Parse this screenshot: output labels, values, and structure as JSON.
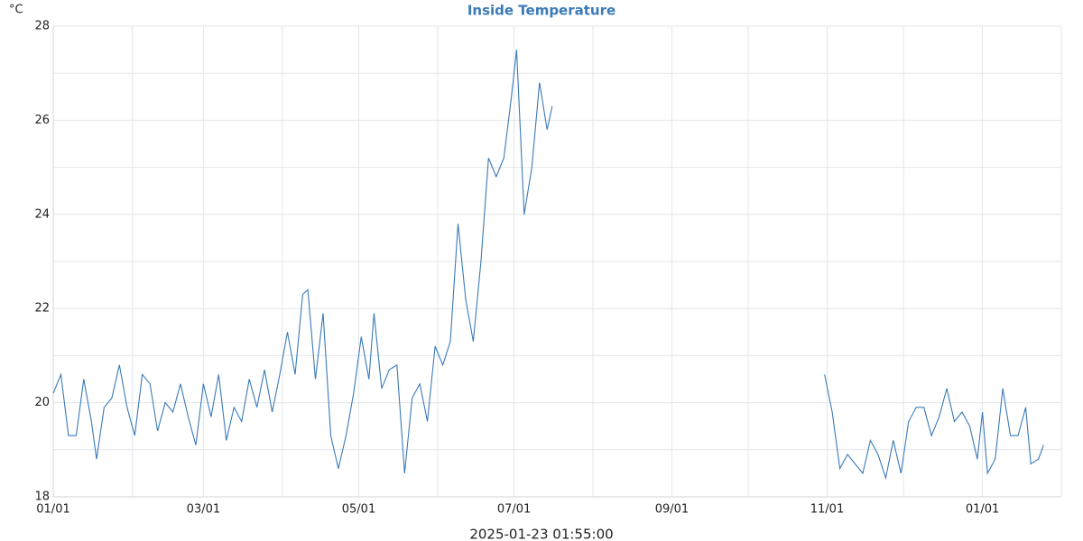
{
  "chart_data": {
    "type": "line",
    "title": "Inside Temperature",
    "y_label": "°C",
    "timestamp": "2025-01-23 01:55:00",
    "color": "#3a7ab8",
    "grid": true,
    "x": [
      0,
      3,
      6,
      9,
      12,
      15,
      17,
      20,
      23,
      26,
      29,
      32,
      35,
      38,
      41,
      44,
      47,
      50,
      53,
      56,
      59,
      62,
      65,
      68,
      71,
      74,
      77,
      80,
      83,
      86,
      89,
      92,
      95,
      98,
      100,
      103,
      106,
      109,
      112,
      115,
      118,
      121,
      124,
      126,
      129,
      132,
      135,
      138,
      141,
      144,
      147,
      150,
      153,
      156,
      159,
      162,
      165,
      168,
      171,
      174,
      177,
      180,
      182,
      185,
      188,
      191,
      194,
      196,
      250,
      303,
      306,
      309,
      312,
      315,
      318,
      321,
      324,
      327,
      330,
      333,
      336,
      339,
      342,
      345,
      348,
      351,
      354,
      357,
      360,
      363,
      365,
      367,
      370,
      373,
      376,
      379,
      382,
      384,
      387,
      389
    ],
    "values": [
      20.2,
      20.6,
      19.3,
      19.3,
      20.5,
      19.6,
      18.8,
      19.9,
      20.1,
      20.8,
      19.9,
      19.3,
      20.6,
      20.4,
      19.4,
      20.0,
      19.8,
      20.4,
      19.7,
      19.1,
      20.4,
      19.7,
      20.6,
      19.2,
      19.9,
      19.6,
      20.5,
      19.9,
      20.7,
      19.8,
      20.6,
      21.5,
      20.6,
      22.3,
      22.4,
      20.5,
      21.9,
      19.3,
      18.6,
      19.3,
      20.2,
      21.4,
      20.5,
      21.9,
      20.3,
      20.7,
      20.8,
      18.5,
      20.1,
      20.4,
      19.6,
      21.2,
      20.8,
      21.3,
      23.8,
      22.2,
      21.3,
      23.0,
      25.2,
      24.8,
      25.2,
      26.5,
      27.5,
      24.0,
      25.0,
      26.8,
      25.8,
      26.3,
      null,
      20.6,
      19.8,
      18.6,
      18.9,
      18.7,
      18.5,
      19.2,
      18.9,
      18.4,
      19.2,
      18.5,
      19.6,
      19.9,
      19.9,
      19.3,
      19.7,
      20.3,
      19.6,
      19.8,
      19.5,
      18.8,
      19.8,
      18.5,
      18.8,
      20.3,
      19.3,
      19.3,
      19.9,
      18.7,
      18.8,
      19.1
    ],
    "xlim": [
      0,
      396
    ],
    "ylim": [
      18,
      28
    ],
    "xticks": [
      {
        "value": 0,
        "label": "01/01"
      },
      {
        "value": 59,
        "label": "03/01"
      },
      {
        "value": 120,
        "label": "05/01"
      },
      {
        "value": 181,
        "label": "07/01"
      },
      {
        "value": 243,
        "label": "09/01"
      },
      {
        "value": 304,
        "label": "11/01"
      },
      {
        "value": 365,
        "label": "01/01"
      }
    ],
    "x_minor_ticks": [
      31,
      90,
      151,
      212,
      273,
      334,
      396
    ],
    "yticks": [
      18,
      20,
      22,
      24,
      26,
      28
    ],
    "y_minor_ticks": [
      19,
      21,
      23,
      25,
      27
    ]
  }
}
